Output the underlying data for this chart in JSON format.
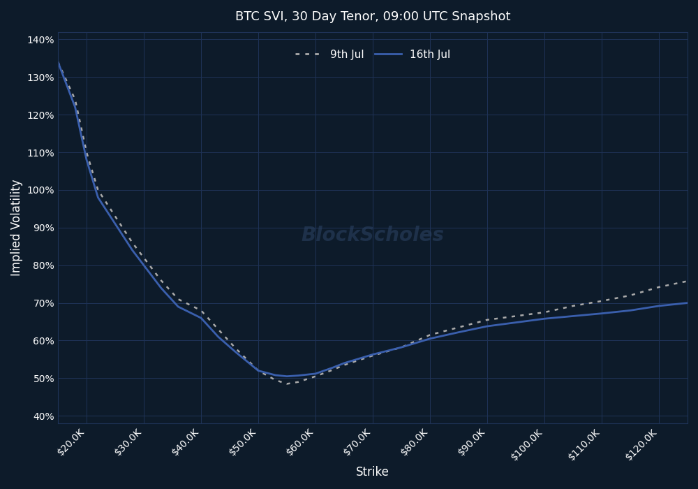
{
  "title": "BTC SVI, 30 Day Tenor, 09:00 UTC Snapshot",
  "xlabel": "Strike",
  "ylabel": "Implied Volatility",
  "background_color": "#0d1b2a",
  "grid_color": "#1f3358",
  "text_color": "#ffffff",
  "watermark": "BlockScholes",
  "xlim": [
    15000,
    125000
  ],
  "ylim": [
    0.38,
    1.42
  ],
  "yticks": [
    0.4,
    0.5,
    0.6,
    0.7,
    0.8,
    0.9,
    1.0,
    1.1,
    1.2,
    1.3,
    1.4
  ],
  "xticks": [
    20000,
    30000,
    40000,
    50000,
    60000,
    70000,
    80000,
    90000,
    100000,
    110000,
    120000
  ],
  "series_9jul": {
    "label": "9th Jul",
    "color": "#aaaaaa",
    "linestyle": "dotted",
    "linewidth": 1.8,
    "x": [
      15000,
      18000,
      20000,
      22000,
      25000,
      28000,
      30000,
      33000,
      36000,
      40000,
      43000,
      46000,
      50000,
      53000,
      55000,
      57000,
      60000,
      63000,
      65000,
      70000,
      75000,
      80000,
      85000,
      90000,
      95000,
      100000,
      105000,
      110000,
      115000,
      120000,
      125000
    ],
    "y": [
      1.34,
      1.24,
      1.1,
      1.0,
      0.93,
      0.86,
      0.82,
      0.76,
      0.71,
      0.68,
      0.63,
      0.58,
      0.52,
      0.495,
      0.485,
      0.49,
      0.505,
      0.522,
      0.535,
      0.56,
      0.582,
      0.615,
      0.635,
      0.655,
      0.665,
      0.675,
      0.692,
      0.705,
      0.72,
      0.742,
      0.758
    ]
  },
  "series_16jul": {
    "label": "16th Jul",
    "color": "#3a5fad",
    "linestyle": "solid",
    "linewidth": 2.0,
    "x": [
      15000,
      18000,
      20000,
      22000,
      25000,
      28000,
      30000,
      33000,
      36000,
      40000,
      43000,
      46000,
      50000,
      53000,
      55000,
      57000,
      60000,
      63000,
      65000,
      70000,
      75000,
      80000,
      85000,
      90000,
      95000,
      100000,
      105000,
      110000,
      115000,
      120000,
      125000
    ],
    "y": [
      1.34,
      1.22,
      1.08,
      0.98,
      0.91,
      0.84,
      0.8,
      0.74,
      0.69,
      0.66,
      0.61,
      0.57,
      0.52,
      0.508,
      0.505,
      0.507,
      0.512,
      0.528,
      0.54,
      0.563,
      0.582,
      0.605,
      0.622,
      0.638,
      0.648,
      0.658,
      0.665,
      0.672,
      0.68,
      0.692,
      0.7
    ]
  }
}
